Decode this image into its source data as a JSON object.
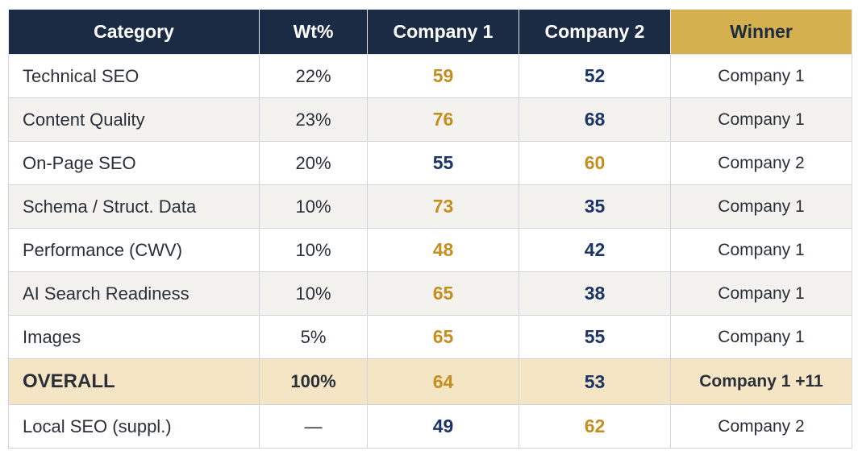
{
  "colors": {
    "header_bg": "#1c2b44",
    "winner_header_bg": "#d4b04f",
    "overall_row_bg": "#f4e5c4",
    "stripe_bg": "#f4f2ee",
    "winner_score": "#c48f1f",
    "other_score": "#1c3566"
  },
  "chart_data": {
    "type": "table",
    "columns": [
      "Category",
      "Wt%",
      "Company 1",
      "Company 2",
      "Winner"
    ],
    "rows": [
      {
        "category": "Technical SEO",
        "weight": "22%",
        "company1": 59,
        "company2": 52,
        "winner": "Company 1",
        "kind": "normal"
      },
      {
        "category": "Content Quality",
        "weight": "23%",
        "company1": 76,
        "company2": 68,
        "winner": "Company 1",
        "kind": "normal"
      },
      {
        "category": "On-Page SEO",
        "weight": "20%",
        "company1": 55,
        "company2": 60,
        "winner": "Company 2",
        "kind": "normal"
      },
      {
        "category": "Schema / Struct. Data",
        "weight": "10%",
        "company1": 73,
        "company2": 35,
        "winner": "Company 1",
        "kind": "normal"
      },
      {
        "category": "Performance (CWV)",
        "weight": "10%",
        "company1": 48,
        "company2": 42,
        "winner": "Company 1",
        "kind": "normal"
      },
      {
        "category": "AI Search Readiness",
        "weight": "10%",
        "company1": 65,
        "company2": 38,
        "winner": "Company 1",
        "kind": "normal"
      },
      {
        "category": "Images",
        "weight": "5%",
        "company1": 65,
        "company2": 55,
        "winner": "Company 1",
        "kind": "normal"
      },
      {
        "category": "OVERALL",
        "weight": "100%",
        "company1": 64,
        "company2": 53,
        "winner": "Company 1 +11",
        "kind": "overall"
      },
      {
        "category": "Local SEO (suppl.)",
        "weight": "—",
        "company1": 49,
        "company2": 62,
        "winner": "Company 2",
        "kind": "normal"
      }
    ]
  }
}
